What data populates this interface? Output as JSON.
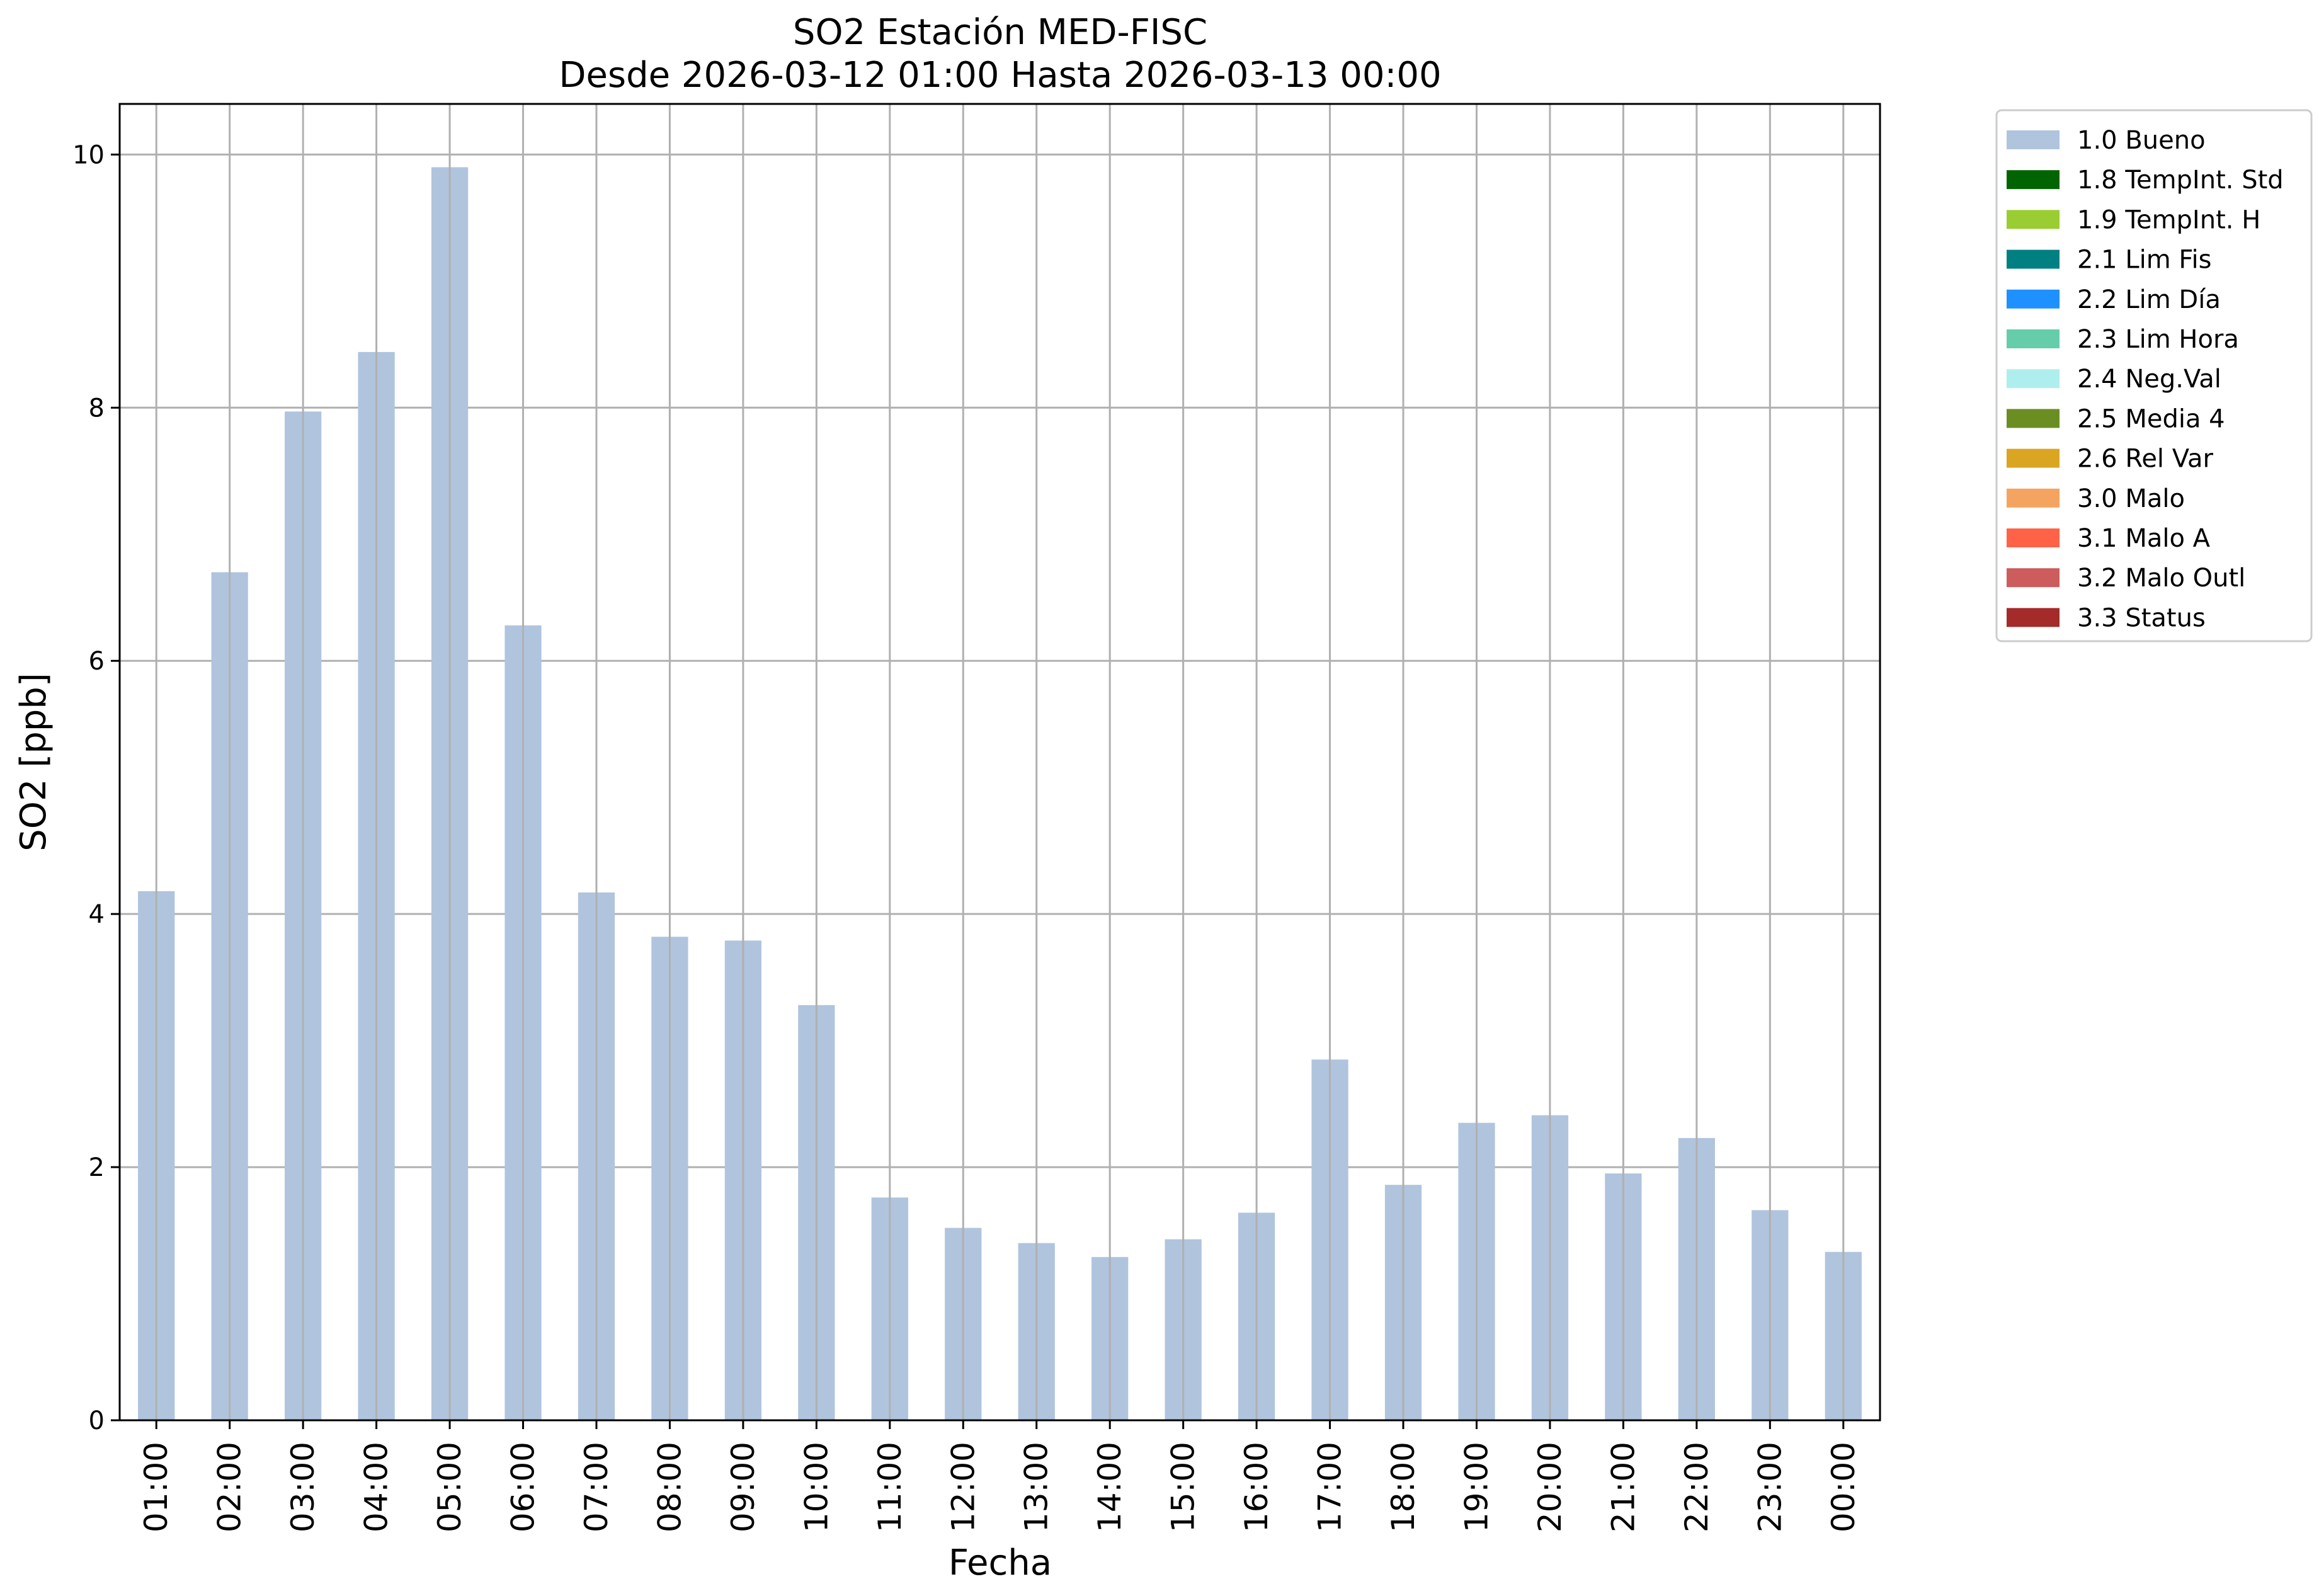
{
  "chart_data": {
    "type": "bar",
    "title": "SO2 Estación MED-FISC",
    "subtitle": "Desde 2026-03-12 01:00 Hasta 2026-03-13 00:00",
    "xlabel": "Fecha",
    "ylabel": "SO2 [ppb]",
    "ylim": [
      0,
      10.4
    ],
    "yticks": [
      0,
      2,
      4,
      6,
      8,
      10
    ],
    "grid": true,
    "legend_position": "outside-top-right",
    "categories": [
      "01:00",
      "02:00",
      "03:00",
      "04:00",
      "05:00",
      "06:00",
      "07:00",
      "08:00",
      "09:00",
      "10:00",
      "11:00",
      "12:00",
      "13:00",
      "14:00",
      "15:00",
      "16:00",
      "17:00",
      "18:00",
      "19:00",
      "20:00",
      "21:00",
      "22:00",
      "23:00",
      "00:00"
    ],
    "series": [
      {
        "name": "1.0 Bueno",
        "color": "#b0c4de",
        "values": [
          4.18,
          6.7,
          7.97,
          8.44,
          9.9,
          6.28,
          4.17,
          3.82,
          3.79,
          3.28,
          1.76,
          1.52,
          1.4,
          1.29,
          1.43,
          1.64,
          2.85,
          1.86,
          2.35,
          2.41,
          1.95,
          2.23,
          1.66,
          1.33
        ]
      }
    ],
    "legend": [
      {
        "label": "1.0 Bueno",
        "color": "#b0c4de"
      },
      {
        "label": "1.8 TempInt. Std",
        "color": "#006400"
      },
      {
        "label": "1.9 TempInt. H",
        "color": "#9acd32"
      },
      {
        "label": "2.1 Lim Fis",
        "color": "#008080"
      },
      {
        "label": "2.2 Lim Día",
        "color": "#1e90ff"
      },
      {
        "label": "2.3 Lim Hora",
        "color": "#66cdaa"
      },
      {
        "label": "2.4 Neg.Val",
        "color": "#afeeee"
      },
      {
        "label": "2.5 Media 4",
        "color": "#6b8e23"
      },
      {
        "label": "2.6 Rel Var",
        "color": "#daa520"
      },
      {
        "label": "3.0 Malo",
        "color": "#f4a460"
      },
      {
        "label": "3.1 Malo A",
        "color": "#ff6347"
      },
      {
        "label": "3.2 Malo Outl",
        "color": "#cd5c5c"
      },
      {
        "label": "3.3 Status",
        "color": "#a52a2a"
      }
    ]
  }
}
